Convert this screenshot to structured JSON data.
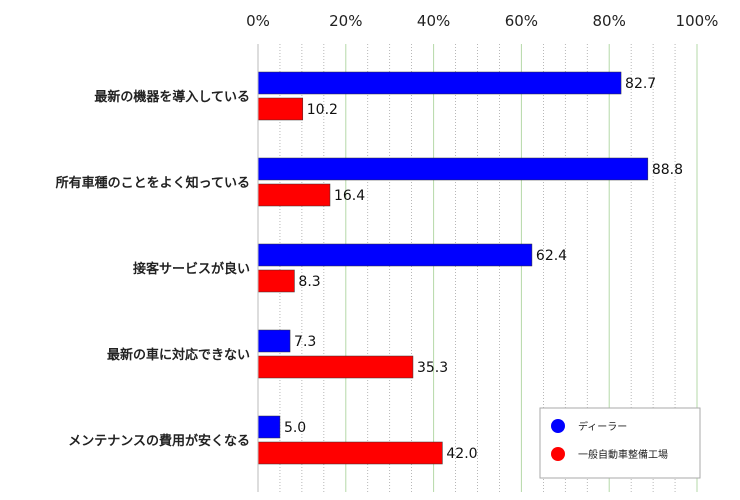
{
  "chart_data": {
    "type": "bar",
    "orientation": "horizontal",
    "categories": [
      "最新の機器を導入している",
      "所有車種のことをよく知っている",
      "接客サービスが良い",
      "最新の車に対応できない",
      "メンテナンスの費用が安くなる"
    ],
    "series": [
      {
        "name": "ディーラー",
        "color": "#0000ff",
        "values": [
          82.7,
          88.8,
          62.4,
          7.3,
          5.0
        ]
      },
      {
        "name": "一般自動車整備工場",
        "color": "#ff0000",
        "values": [
          10.2,
          16.4,
          8.3,
          35.3,
          42.0
        ]
      }
    ],
    "value_labels": [
      [
        "82.7",
        "88.8",
        "62.4",
        "7.3",
        "5.0"
      ],
      [
        "10.2",
        "16.4",
        "8.3",
        "35.3",
        "42.0"
      ]
    ],
    "xlim": [
      0,
      100
    ],
    "xticks": [
      "0%",
      "20%",
      "40%",
      "60%",
      "80%",
      "100%"
    ],
    "grid": true,
    "legend": "bottom-right",
    "title": "",
    "xlabel": "",
    "ylabel": ""
  }
}
